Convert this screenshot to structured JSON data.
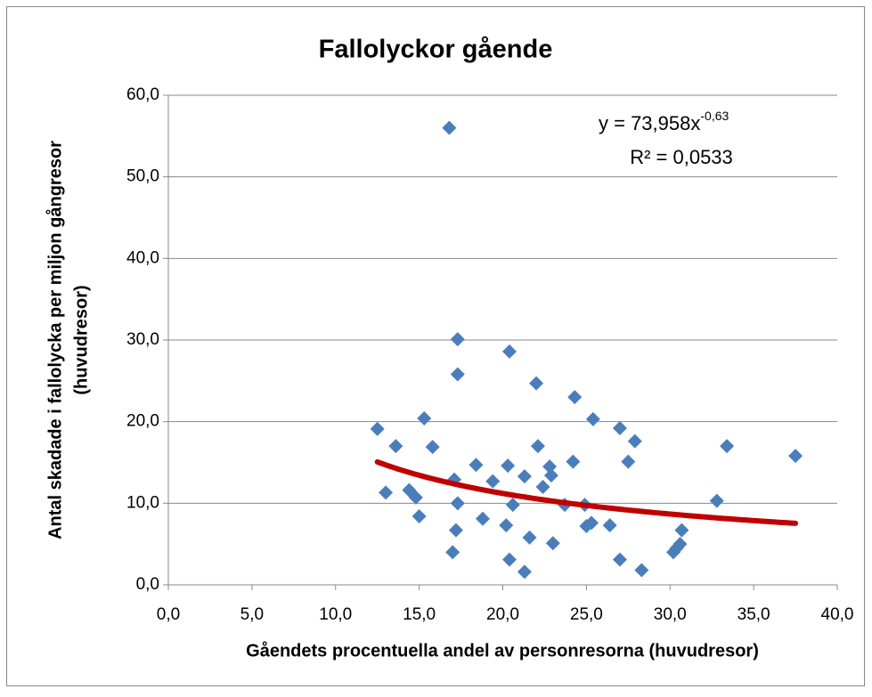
{
  "chart_data": {
    "type": "scatter",
    "title": "Fallolyckor gående",
    "x_label": "Gåendets procentuella andel av personresorna (huvudresor)",
    "y_label": [
      "Antal skadade i fallolycka per miljon gångresor",
      "(huvudresor)"
    ],
    "color": "#4a7ebb",
    "grid": true,
    "xlim": [
      0,
      40
    ],
    "ylim": [
      0,
      60
    ],
    "xticks": [
      {
        "value": 0,
        "label": "0,0"
      },
      {
        "value": 5,
        "label": "5,0"
      },
      {
        "value": 10,
        "label": "10,0"
      },
      {
        "value": 15,
        "label": "15,0"
      },
      {
        "value": 20,
        "label": "20,0"
      },
      {
        "value": 25,
        "label": "25,0"
      },
      {
        "value": 30,
        "label": "30,0"
      },
      {
        "value": 35,
        "label": "35,0"
      },
      {
        "value": 40,
        "label": "40,0"
      }
    ],
    "yticks": [
      {
        "value": 0,
        "label": "0,0"
      },
      {
        "value": 10,
        "label": "10,0"
      },
      {
        "value": 20,
        "label": "20,0"
      },
      {
        "value": 30,
        "label": "30,0"
      },
      {
        "value": 40,
        "label": "40,0"
      },
      {
        "value": 50,
        "label": "50,0"
      },
      {
        "value": 60,
        "label": "60,0"
      }
    ],
    "x": [
      12.5,
      13.0,
      13.6,
      14.4,
      14.8,
      15.0,
      15.3,
      15.8,
      16.8,
      17.0,
      17.1,
      17.2,
      17.3,
      17.3,
      17.3,
      18.4,
      18.8,
      19.4,
      20.2,
      20.3,
      20.4,
      20.4,
      20.6,
      21.3,
      21.3,
      21.6,
      22.0,
      22.1,
      22.4,
      22.8,
      22.9,
      23.0,
      23.7,
      24.2,
      24.3,
      24.9,
      25.0,
      25.3,
      25.4,
      26.4,
      27.0,
      27.0,
      27.5,
      27.9,
      28.3,
      30.2,
      30.4,
      30.6,
      30.7,
      32.8,
      33.4,
      37.5
    ],
    "values": [
      19.1,
      11.3,
      17.0,
      11.6,
      10.7,
      8.4,
      20.4,
      16.9,
      56.0,
      4.0,
      12.9,
      6.7,
      25.8,
      10.0,
      30.1,
      14.7,
      8.1,
      12.7,
      7.3,
      14.6,
      28.6,
      3.1,
      9.8,
      13.3,
      1.6,
      5.8,
      24.7,
      17.0,
      12.0,
      14.5,
      13.4,
      5.1,
      9.8,
      15.1,
      23.0,
      9.8,
      7.2,
      7.6,
      20.3,
      7.3,
      3.1,
      19.2,
      15.1,
      17.6,
      1.8,
      4.0,
      4.5,
      5.0,
      6.7,
      10.3,
      17.0,
      15.8
    ],
    "trendline": {
      "coefficient": 73.958,
      "exponent": -0.63,
      "color": "#c00000",
      "equation_label": "y = 73,958x",
      "exponent_label": "-0,63",
      "r_squared_label": "R² = 0,0533"
    }
  }
}
